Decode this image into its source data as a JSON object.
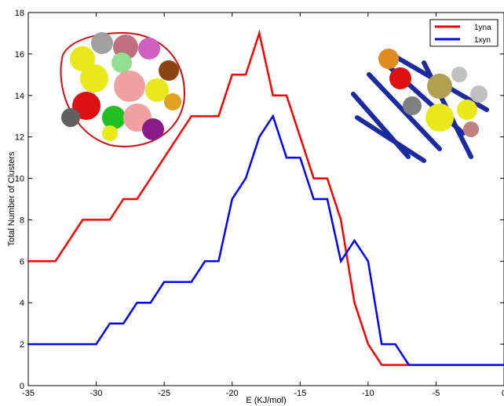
{
  "chart_data": {
    "type": "line",
    "title": "",
    "xlabel": "E (KJ/mol)",
    "ylabel": "Total Number of Clusters",
    "xlim": [
      -35,
      0
    ],
    "ylim": [
      0,
      18
    ],
    "xticks": [
      -35,
      -30,
      -25,
      -20,
      -15,
      -10,
      -5,
      0
    ],
    "yticks": [
      0,
      2,
      4,
      6,
      8,
      10,
      12,
      14,
      16,
      18
    ],
    "grid": false,
    "legend_position": "top-right",
    "series": [
      {
        "name": "1yna",
        "color": "#ff0000",
        "x": [
          -35,
          -33,
          -31,
          -29,
          -28,
          -27,
          -23,
          -21,
          -20,
          -19,
          -18,
          -17,
          -16,
          -15,
          -14,
          -13,
          -12,
          -11,
          -10,
          -9,
          -8,
          -7
        ],
        "y": [
          6,
          6,
          8,
          8,
          9,
          9,
          13,
          13,
          15,
          15,
          17,
          14,
          14,
          12,
          10,
          10,
          8,
          4,
          2,
          1,
          1,
          1
        ]
      },
      {
        "name": "1xyn",
        "color": "#0000ff",
        "x": [
          -35,
          -30,
          -29,
          -28,
          -27,
          -26,
          -25,
          -23,
          -22,
          -21,
          -20,
          -19,
          -18,
          -17,
          -16,
          -15,
          -14,
          -13,
          -12,
          -11,
          -10,
          -9,
          -8,
          -7,
          0
        ],
        "y": [
          2,
          2,
          3,
          3,
          4,
          4,
          5,
          5,
          6,
          6,
          9,
          10,
          12,
          13,
          11,
          11,
          9,
          9,
          6,
          7,
          6,
          2,
          2,
          1,
          1
        ]
      }
    ]
  }
}
